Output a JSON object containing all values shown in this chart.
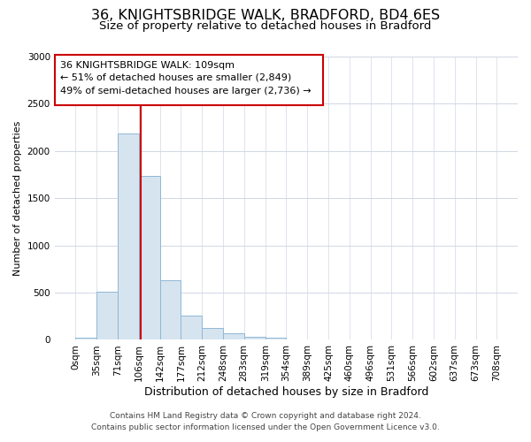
{
  "title1": "36, KNIGHTSBRIDGE WALK, BRADFORD, BD4 6ES",
  "title2": "Size of property relative to detached houses in Bradford",
  "xlabel": "Distribution of detached houses by size in Bradford",
  "ylabel": "Number of detached properties",
  "bin_edges": [
    0,
    35,
    71,
    106,
    142,
    177,
    212,
    248,
    283,
    319,
    354,
    389,
    425,
    460,
    496,
    531,
    566,
    602,
    637,
    673,
    708
  ],
  "bar_heights": [
    20,
    510,
    2190,
    1740,
    630,
    255,
    130,
    70,
    35,
    20,
    8,
    5,
    3,
    1,
    0,
    0,
    0,
    0,
    0,
    0
  ],
  "bar_facecolor": "#d6e4f0",
  "bar_edgecolor": "#90b8d4",
  "vline_x": 109,
  "vline_color": "#cc0000",
  "ylim": [
    0,
    3000
  ],
  "yticks": [
    0,
    500,
    1000,
    1500,
    2000,
    2500,
    3000
  ],
  "annotation_title": "36 KNIGHTSBRIDGE WALK: 109sqm",
  "annotation_line1": "← 51% of detached houses are smaller (2,849)",
  "annotation_line2": "49% of semi-detached houses are larger (2,736) →",
  "annotation_box_color": "#ffffff",
  "annotation_box_edge": "#cc0000",
  "footnote1": "Contains HM Land Registry data © Crown copyright and database right 2024.",
  "footnote2": "Contains public sector information licensed under the Open Government Licence v3.0.",
  "bg_color": "#ffffff",
  "grid_color": "#d0d8e4",
  "title1_fontsize": 11.5,
  "title2_fontsize": 9.5,
  "xlabel_fontsize": 9,
  "ylabel_fontsize": 8,
  "tick_fontsize": 7.5,
  "annotation_fontsize": 8,
  "footnote_fontsize": 6.5
}
